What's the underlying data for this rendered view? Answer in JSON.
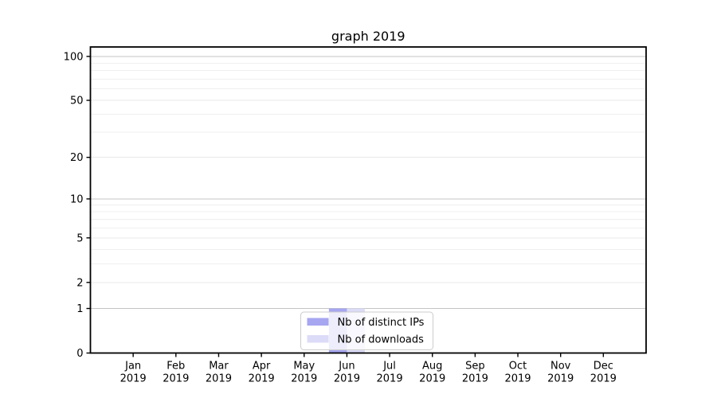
{
  "chart_data": {
    "type": "bar",
    "title": "graph 2019",
    "x_year_label": "2019",
    "categories": [
      "Jan",
      "Feb",
      "Mar",
      "Apr",
      "May",
      "Jun",
      "Jul",
      "Aug",
      "Sep",
      "Oct",
      "Nov",
      "Dec"
    ],
    "series": [
      {
        "name": "Nb of distinct IPs",
        "color": "#a6a6f1",
        "values": [
          0,
          0,
          0,
          0,
          0,
          1,
          0,
          0,
          0,
          0,
          0,
          0
        ]
      },
      {
        "name": "Nb of downloads",
        "color": "#dcdcf8",
        "values": [
          0,
          0,
          0,
          0,
          0,
          1,
          0,
          0,
          0,
          0,
          0,
          0
        ]
      }
    ],
    "yscale": "log1p",
    "ylim": [
      0,
      116
    ],
    "y_ticks": [
      0,
      1,
      2,
      5,
      10,
      20,
      50,
      100
    ],
    "y_minor_gridlines": [
      3,
      4,
      6,
      7,
      8,
      9,
      30,
      40,
      60,
      70,
      80,
      90
    ],
    "grid": true,
    "legend_position": "lower center",
    "legend_entries": [
      "Nb of distinct IPs",
      "Nb of downloads"
    ],
    "colors": {
      "background": "#ffffff",
      "spine": "#000000",
      "grid_decade": "#c4c4c4",
      "grid_labeled": "#e8e8e8",
      "grid_minor": "#efefef",
      "legend_border": "#cccccc"
    }
  }
}
